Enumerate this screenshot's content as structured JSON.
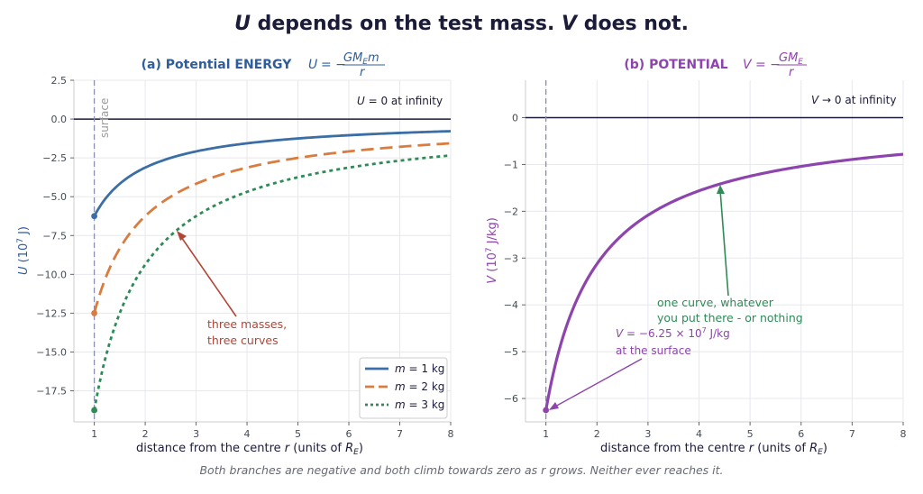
{
  "title": {
    "u": "U",
    "u_text": "depends on the test mass.",
    "v": "V",
    "v_text": "does not."
  },
  "caption": "Both branches are negative and both climb towards zero as r grows. Neither ever reaches it.",
  "chart_data": [
    {
      "type": "line",
      "title": "(a) Potential ENERGY",
      "formula": "U = −GM_E m / r",
      "xlabel": "distance from the centre r (units of R_E)",
      "ylabel": "U (10^7 J)",
      "xlim": [
        0.6,
        8
      ],
      "ylim": [
        -19.5,
        2.5
      ],
      "xticks": [
        1,
        2,
        3,
        4,
        5,
        6,
        7,
        8
      ],
      "yticks": [
        2.5,
        0.0,
        -2.5,
        -5.0,
        -7.5,
        -10.0,
        -12.5,
        -15.0,
        -17.5
      ],
      "ytick_labels": [
        "2.5",
        "0.0",
        "−2.5",
        "−5.0",
        "−7.5",
        "−10.0",
        "−12.5",
        "−15.0",
        "−17.5"
      ],
      "grid": true,
      "legend_position": "lower-right",
      "reference_lines": [
        {
          "type": "horizontal",
          "y": 0
        },
        {
          "type": "vertical",
          "x": 1,
          "label": "surface",
          "style": "dashed"
        }
      ],
      "note": "U = 0 at infinity",
      "series": [
        {
          "name": "m = 1 kg",
          "color": "#3a6ea5",
          "style": "solid",
          "x": [
            1,
            1.5,
            2,
            3,
            4,
            5,
            6,
            7,
            8
          ],
          "y": [
            -6.25,
            -4.17,
            -3.13,
            -2.08,
            -1.56,
            -1.25,
            -1.04,
            -0.89,
            -0.78
          ],
          "start_marker": true
        },
        {
          "name": "m = 2 kg",
          "color": "#d97c3f",
          "style": "dashed",
          "x": [
            1,
            1.5,
            2,
            3,
            4,
            5,
            6,
            7,
            8
          ],
          "y": [
            -12.5,
            -8.33,
            -6.25,
            -4.17,
            -3.13,
            -2.5,
            -2.08,
            -1.79,
            -1.56
          ],
          "start_marker": true
        },
        {
          "name": "m = 3 kg",
          "color": "#2e8b57",
          "style": "dotted",
          "x": [
            1,
            1.5,
            2,
            3,
            4,
            5,
            6,
            7,
            8
          ],
          "y": [
            -18.75,
            -12.5,
            -9.38,
            -6.25,
            -4.69,
            -3.75,
            -3.13,
            -2.68,
            -2.34
          ],
          "start_marker": true
        }
      ],
      "annotation": [
        "three masses,",
        "three curves"
      ],
      "surface_label": "surface"
    },
    {
      "type": "line",
      "title": "(b) POTENTIAL",
      "formula": "V = −GM_E / r",
      "xlabel": "distance from the centre r (units of R_E)",
      "ylabel": "V (10^7 J/kg)",
      "xlim": [
        0.6,
        8
      ],
      "ylim": [
        -6.5,
        0.8
      ],
      "xticks": [
        1,
        2,
        3,
        4,
        5,
        6,
        7,
        8
      ],
      "yticks": [
        0,
        -1,
        -2,
        -3,
        -4,
        -5,
        -6
      ],
      "ytick_labels": [
        "0",
        "−1",
        "−2",
        "−3",
        "−4",
        "−5",
        "−6"
      ],
      "grid": true,
      "reference_lines": [
        {
          "type": "horizontal",
          "y": 0
        },
        {
          "type": "vertical",
          "x": 1,
          "style": "dashed"
        }
      ],
      "note": "V → 0 at infinity",
      "series": [
        {
          "name": "",
          "color": "#8e44ad",
          "style": "solid",
          "x": [
            1,
            1.5,
            2,
            3,
            4,
            5,
            6,
            7,
            8
          ],
          "y": [
            -6.25,
            -4.17,
            -3.13,
            -2.08,
            -1.56,
            -1.25,
            -1.04,
            -0.89,
            -0.78
          ],
          "start_marker": true
        }
      ],
      "annotation": [
        "one curve, whatever",
        "you put there - or nothing"
      ],
      "surface_annotation": [
        "V = −6.25 × 10^7 J/kg",
        "at the surface"
      ]
    }
  ],
  "charts": [
    {
      "title": "(a) Potential ENERGY",
      "annotation": [
        "three masses,",
        "three curves"
      ],
      "surface_label": "surface"
    },
    {
      "title": "(b) POTENTIAL",
      "annotation": [
        "one curve, whatever",
        "you put there - or nothing"
      ],
      "surface_annotation": [
        "V = −6.25 × 10^7 J/kg",
        "at the surface"
      ]
    }
  ]
}
